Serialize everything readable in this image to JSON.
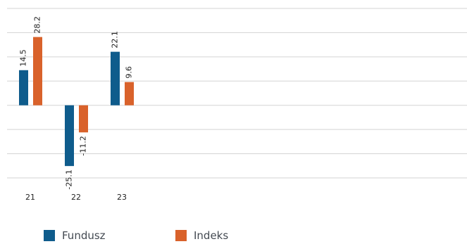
{
  "chart_data": {
    "type": "bar",
    "categories": [
      "21",
      "22",
      "23"
    ],
    "series": [
      {
        "name": "Fundusz",
        "values": [
          14.5,
          -25.1,
          22.1
        ],
        "color": "#0f5c8c"
      },
      {
        "name": "Indeks",
        "values": [
          28.2,
          -11.2,
          9.6
        ],
        "color": "#d9622b"
      }
    ],
    "ylim": [
      -30,
      40
    ],
    "grid": true,
    "legend_position": "bottom-left",
    "title": "",
    "xlabel": "",
    "ylabel": ""
  }
}
